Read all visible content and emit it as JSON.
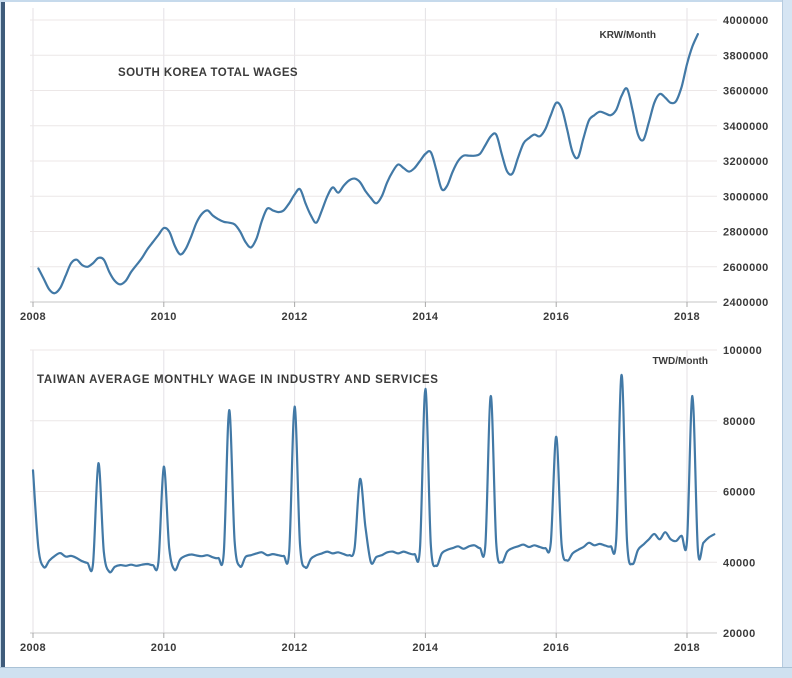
{
  "page": {
    "background": "#ffffff",
    "frame_colors": {
      "left_dark": "#3f5c7b",
      "top": "#c6daec",
      "right": "#d6e5f3",
      "bottom": "#cfe1f0"
    }
  },
  "styles": {
    "grid_color": "#ece7e7",
    "vgrid_color": "#e4e2e6",
    "axis_color": "#c4c4c4",
    "tick_color": "#a9a9a9",
    "text_color": "#3b3b3b"
  },
  "chart_data": [
    {
      "type": "line",
      "title": "SOUTH KOREA TOTAL WAGES",
      "unit_label": "KRW/Month",
      "line_color": "#4279a6",
      "grid": true,
      "legend": "none",
      "x_ticks": [
        2008,
        2010,
        2012,
        2014,
        2016,
        2018
      ],
      "xlim": [
        2007.95,
        2018.46
      ],
      "y_ticks": [
        2400000,
        2600000,
        2800000,
        3000000,
        3200000,
        3400000,
        3600000,
        3800000,
        4000000
      ],
      "ylim": [
        2400000,
        4000000
      ],
      "frequency": "monthly",
      "series_start_year": 2008,
      "series_start_month": 2,
      "values": [
        2590000,
        2530000,
        2470000,
        2450000,
        2480000,
        2550000,
        2620000,
        2640000,
        2610000,
        2600000,
        2620000,
        2650000,
        2640000,
        2570000,
        2520000,
        2500000,
        2520000,
        2570000,
        2610000,
        2650000,
        2700000,
        2740000,
        2780000,
        2820000,
        2800000,
        2720000,
        2670000,
        2700000,
        2770000,
        2850000,
        2900000,
        2920000,
        2890000,
        2870000,
        2855000,
        2850000,
        2840000,
        2800000,
        2740000,
        2710000,
        2760000,
        2860000,
        2930000,
        2920000,
        2910000,
        2920000,
        2960000,
        3010000,
        3040000,
        2960000,
        2890000,
        2850000,
        2920000,
        3000000,
        3050000,
        3020000,
        3060000,
        3090000,
        3100000,
        3080000,
        3030000,
        2990000,
        2960000,
        3000000,
        3080000,
        3140000,
        3180000,
        3160000,
        3140000,
        3160000,
        3200000,
        3240000,
        3250000,
        3150000,
        3040000,
        3060000,
        3140000,
        3200000,
        3230000,
        3230000,
        3230000,
        3240000,
        3290000,
        3340000,
        3350000,
        3240000,
        3140000,
        3130000,
        3220000,
        3300000,
        3330000,
        3350000,
        3340000,
        3380000,
        3460000,
        3530000,
        3500000,
        3380000,
        3250000,
        3220000,
        3330000,
        3430000,
        3460000,
        3480000,
        3470000,
        3460000,
        3490000,
        3570000,
        3610000,
        3490000,
        3350000,
        3320000,
        3420000,
        3530000,
        3580000,
        3560000,
        3530000,
        3540000,
        3620000,
        3750000,
        3850000,
        3920000
      ]
    },
    {
      "type": "line",
      "title": "TAIWAN AVERAGE MONTHLY WAGE IN INDUSTRY AND SERVICES",
      "unit_label": "TWD/Month",
      "line_color": "#4279a6",
      "grid": true,
      "legend": "none",
      "x_ticks": [
        2008,
        2010,
        2012,
        2014,
        2016,
        2018
      ],
      "xlim": [
        2007.95,
        2018.46
      ],
      "y_ticks": [
        20000,
        40000,
        60000,
        80000,
        100000
      ],
      "ylim": [
        20000,
        100000
      ],
      "frequency": "monthly",
      "series_start_year": 2008,
      "series_start_month": 1,
      "values": [
        66000,
        44000,
        38600,
        40500,
        41800,
        42600,
        41600,
        41800,
        41200,
        40300,
        39800,
        39500,
        68000,
        43000,
        37300,
        38700,
        39200,
        39000,
        39300,
        39000,
        39300,
        39500,
        39200,
        40000,
        67000,
        44000,
        37800,
        40800,
        41800,
        42200,
        41900,
        41700,
        42000,
        41400,
        41200,
        42700,
        83000,
        46000,
        38800,
        41500,
        42000,
        42500,
        42800,
        42000,
        42300,
        42000,
        41800,
        43000,
        84000,
        45000,
        38500,
        41000,
        42000,
        42500,
        43000,
        42500,
        42800,
        42300,
        42000,
        44000,
        63500,
        50000,
        40000,
        41500,
        42000,
        42800,
        43000,
        42500,
        43000,
        42500,
        42300,
        44000,
        89000,
        45000,
        39000,
        42500,
        43500,
        44000,
        44500,
        43800,
        44500,
        44800,
        44000,
        45000,
        87000,
        45500,
        40000,
        43000,
        44000,
        44500,
        45000,
        44300,
        44800,
        44300,
        44000,
        45500,
        75500,
        45000,
        40500,
        42500,
        43500,
        44300,
        45500,
        44800,
        45200,
        44700,
        44500,
        46500,
        93000,
        46000,
        39500,
        43500,
        45000,
        46500,
        48000,
        46500,
        48500,
        46500,
        46000,
        47500,
        46000,
        87000,
        43500,
        45500,
        47000,
        47900
      ]
    }
  ]
}
